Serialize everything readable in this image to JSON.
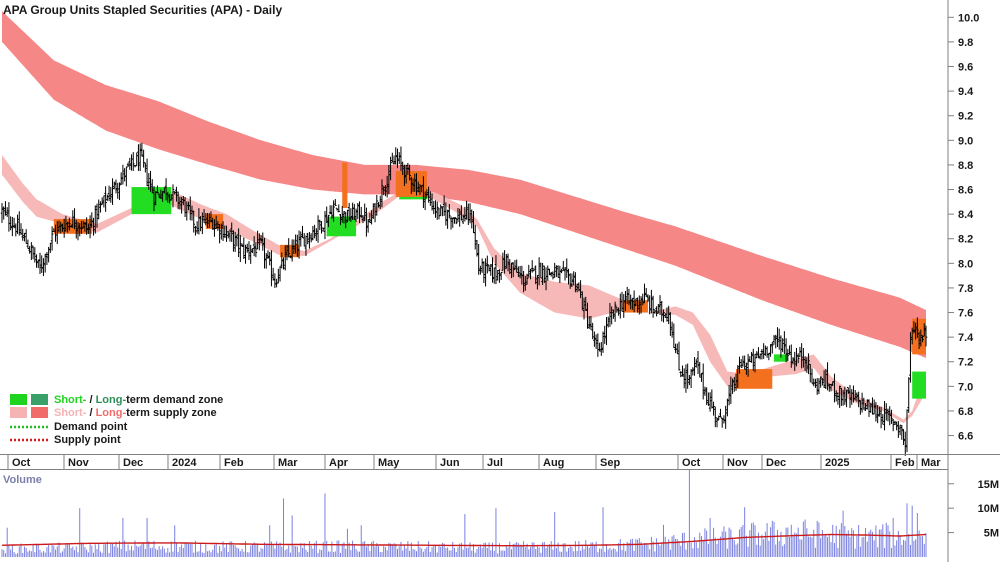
{
  "chart_data": {
    "type": "candlestick",
    "title": "APA Group Units Stapled Securities (APA) - Daily",
    "price_axis": {
      "ylim": [
        6.45,
        10.1
      ],
      "ticks": [
        "10.0",
        "9.8",
        "9.6",
        "9.4",
        "9.2",
        "9.0",
        "8.8",
        "8.6",
        "8.4",
        "8.2",
        "8.0",
        "7.8",
        "7.6",
        "7.4",
        "7.2",
        "7.0",
        "6.8",
        "6.6"
      ]
    },
    "x_axis": {
      "labels": [
        "Oct",
        "Nov",
        "Dec",
        "2024",
        "Feb",
        "Mar",
        "Apr",
        "May",
        "Jun",
        "Jul",
        "Aug",
        "Sep",
        "Oct",
        "Nov",
        "Dec",
        "2025",
        "Feb",
        "Mar"
      ]
    },
    "volume_axis": {
      "label": "Volume",
      "ticks": [
        "15M",
        "10M",
        "5M"
      ],
      "ylim": [
        0,
        17
      ]
    },
    "legend": [
      {
        "prefix": "Short-",
        "sep": " / ",
        "middle": "Long-",
        "rest": "term demand zone",
        "colors": [
          "#1ed41e",
          "#3aa06a"
        ],
        "kind": "demand-zone",
        "prefix_color": "#1ed41e",
        "middle_color": "#2f8f5a"
      },
      {
        "prefix": "Short-",
        "sep": " / ",
        "middle": "Long-",
        "rest": "term supply zone",
        "colors": [
          "#f5b3b3",
          "#f26b6b"
        ],
        "kind": "supply-zone",
        "prefix_color": "#f5b3b3",
        "middle_color": "#f26b6b"
      },
      {
        "text": "Demand point",
        "color": "#22c022",
        "kind": "dotted"
      },
      {
        "text": "Supply point",
        "color": "#d41f1f",
        "kind": "dotted"
      }
    ],
    "series_anchors": {
      "long_supply_upper": [
        [
          0,
          10.05
        ],
        [
          30,
          9.65
        ],
        [
          60,
          9.45
        ],
        [
          90,
          9.32
        ],
        [
          120,
          9.15
        ],
        [
          150,
          9.0
        ],
        [
          180,
          8.88
        ],
        [
          210,
          8.8
        ],
        [
          240,
          8.8
        ],
        [
          270,
          8.76
        ],
        [
          300,
          8.68
        ],
        [
          330,
          8.55
        ],
        [
          360,
          8.42
        ],
        [
          390,
          8.3
        ],
        [
          415,
          8.18
        ],
        [
          440,
          8.06
        ],
        [
          460,
          7.97
        ],
        [
          480,
          7.88
        ],
        [
          500,
          7.8
        ],
        [
          520,
          7.72
        ],
        [
          535,
          7.62
        ]
      ],
      "long_supply_lower": [
        [
          0,
          9.8
        ],
        [
          30,
          9.33
        ],
        [
          60,
          9.08
        ],
        [
          90,
          8.93
        ],
        [
          120,
          8.8
        ],
        [
          150,
          8.68
        ],
        [
          180,
          8.6
        ],
        [
          210,
          8.56
        ],
        [
          240,
          8.56
        ],
        [
          270,
          8.5
        ],
        [
          300,
          8.4
        ],
        [
          330,
          8.26
        ],
        [
          360,
          8.12
        ],
        [
          390,
          7.98
        ],
        [
          415,
          7.84
        ],
        [
          440,
          7.7
        ],
        [
          460,
          7.6
        ],
        [
          480,
          7.5
        ],
        [
          500,
          7.41
        ],
        [
          520,
          7.32
        ],
        [
          535,
          7.23
        ]
      ],
      "short_band_upper": [
        [
          0,
          8.88
        ],
        [
          12,
          8.65
        ],
        [
          20,
          8.52
        ],
        [
          35,
          8.4
        ],
        [
          55,
          8.32
        ],
        [
          75,
          8.45
        ],
        [
          85,
          8.6
        ],
        [
          100,
          8.58
        ],
        [
          115,
          8.48
        ],
        [
          130,
          8.4
        ],
        [
          145,
          8.27
        ],
        [
          160,
          8.15
        ],
        [
          175,
          8.1
        ],
        [
          190,
          8.2
        ],
        [
          205,
          8.34
        ],
        [
          220,
          8.5
        ],
        [
          235,
          8.62
        ],
        [
          250,
          8.58
        ],
        [
          265,
          8.48
        ],
        [
          275,
          8.36
        ],
        [
          285,
          8.12
        ],
        [
          300,
          7.92
        ],
        [
          320,
          7.85
        ],
        [
          340,
          7.82
        ],
        [
          360,
          7.7
        ],
        [
          375,
          7.6
        ],
        [
          390,
          7.65
        ],
        [
          400,
          7.6
        ],
        [
          410,
          7.42
        ],
        [
          420,
          7.12
        ],
        [
          432,
          7.1
        ],
        [
          445,
          7.16
        ],
        [
          460,
          7.22
        ],
        [
          470,
          7.26
        ],
        [
          480,
          7.08
        ],
        [
          495,
          6.92
        ],
        [
          510,
          6.83
        ],
        [
          522,
          6.73
        ],
        [
          527,
          6.8
        ],
        [
          535,
          7.12
        ]
      ],
      "short_band_lower": [
        [
          0,
          8.72
        ],
        [
          12,
          8.5
        ],
        [
          20,
          8.38
        ],
        [
          35,
          8.32
        ],
        [
          55,
          8.25
        ],
        [
          75,
          8.4
        ],
        [
          85,
          8.56
        ],
        [
          100,
          8.46
        ],
        [
          115,
          8.36
        ],
        [
          130,
          8.27
        ],
        [
          145,
          8.18
        ],
        [
          160,
          8.07
        ],
        [
          175,
          8.06
        ],
        [
          190,
          8.18
        ],
        [
          205,
          8.3
        ],
        [
          220,
          8.44
        ],
        [
          235,
          8.6
        ],
        [
          250,
          8.52
        ],
        [
          265,
          8.4
        ],
        [
          275,
          8.3
        ],
        [
          285,
          8.0
        ],
        [
          300,
          7.76
        ],
        [
          320,
          7.6
        ],
        [
          340,
          7.55
        ],
        [
          360,
          7.62
        ],
        [
          375,
          7.6
        ],
        [
          390,
          7.58
        ],
        [
          400,
          7.5
        ],
        [
          410,
          7.2
        ],
        [
          420,
          7.0
        ],
        [
          432,
          7.0
        ],
        [
          445,
          7.08
        ],
        [
          460,
          7.1
        ],
        [
          470,
          7.15
        ],
        [
          480,
          6.97
        ],
        [
          495,
          6.86
        ],
        [
          510,
          6.8
        ],
        [
          522,
          6.7
        ],
        [
          527,
          6.76
        ],
        [
          535,
          6.95
        ]
      ],
      "close": [
        [
          0,
          8.42
        ],
        [
          8,
          8.3
        ],
        [
          15,
          8.15
        ],
        [
          22,
          7.95
        ],
        [
          30,
          8.25
        ],
        [
          40,
          8.35
        ],
        [
          50,
          8.28
        ],
        [
          58,
          8.48
        ],
        [
          65,
          8.62
        ],
        [
          72,
          8.75
        ],
        [
          80,
          8.86
        ],
        [
          88,
          8.55
        ],
        [
          95,
          8.6
        ],
        [
          105,
          8.48
        ],
        [
          112,
          8.32
        ],
        [
          122,
          8.34
        ],
        [
          132,
          8.22
        ],
        [
          140,
          8.1
        ],
        [
          150,
          8.14
        ],
        [
          158,
          7.86
        ],
        [
          165,
          8.06
        ],
        [
          175,
          8.2
        ],
        [
          185,
          8.32
        ],
        [
          192,
          8.45
        ],
        [
          200,
          8.38
        ],
        [
          208,
          8.42
        ],
        [
          212,
          8.3
        ],
        [
          220,
          8.6
        ],
        [
          228,
          8.86
        ],
        [
          235,
          8.72
        ],
        [
          245,
          8.56
        ],
        [
          252,
          8.42
        ],
        [
          262,
          8.38
        ],
        [
          272,
          8.38
        ],
        [
          276,
          7.96
        ],
        [
          286,
          7.92
        ],
        [
          292,
          8.02
        ],
        [
          302,
          7.86
        ],
        [
          310,
          7.94
        ],
        [
          320,
          7.92
        ],
        [
          332,
          7.86
        ],
        [
          340,
          7.5
        ],
        [
          345,
          7.26
        ],
        [
          352,
          7.55
        ],
        [
          360,
          7.7
        ],
        [
          366,
          7.68
        ],
        [
          372,
          7.72
        ],
        [
          378,
          7.62
        ],
        [
          386,
          7.6
        ],
        [
          392,
          7.14
        ],
        [
          398,
          7.05
        ],
        [
          402,
          7.18
        ],
        [
          408,
          6.92
        ],
        [
          416,
          6.7
        ],
        [
          422,
          6.95
        ],
        [
          428,
          7.18
        ],
        [
          435,
          7.2
        ],
        [
          442,
          7.3
        ],
        [
          450,
          7.38
        ],
        [
          458,
          7.22
        ],
        [
          465,
          7.25
        ],
        [
          470,
          7.0
        ],
        [
          476,
          7.05
        ],
        [
          485,
          6.94
        ],
        [
          495,
          6.88
        ],
        [
          505,
          6.8
        ],
        [
          512,
          6.75
        ],
        [
          520,
          6.68
        ],
        [
          523,
          6.52
        ],
        [
          526,
          7.35
        ],
        [
          528,
          7.5
        ],
        [
          531,
          7.4
        ],
        [
          535,
          7.45
        ]
      ],
      "volume": [
        [
          0,
          1.8
        ],
        [
          40,
          2.0
        ],
        [
          80,
          2.4
        ],
        [
          120,
          2.2
        ],
        [
          160,
          2.2
        ],
        [
          200,
          2.3
        ],
        [
          240,
          2.2
        ],
        [
          280,
          2.0
        ],
        [
          320,
          2.3
        ],
        [
          350,
          2.4
        ],
        [
          380,
          3.0
        ],
        [
          400,
          3.8
        ],
        [
          420,
          4.3
        ],
        [
          440,
          5.0
        ],
        [
          460,
          5.4
        ],
        [
          480,
          4.9
        ],
        [
          500,
          4.6
        ],
        [
          520,
          4.4
        ],
        [
          535,
          4.8
        ]
      ],
      "volume_ma": [
        [
          0,
          2.4
        ],
        [
          50,
          2.8
        ],
        [
          100,
          2.9
        ],
        [
          150,
          2.6
        ],
        [
          200,
          2.5
        ],
        [
          250,
          2.4
        ],
        [
          300,
          2.3
        ],
        [
          340,
          2.4
        ],
        [
          370,
          2.6
        ],
        [
          400,
          3.2
        ],
        [
          430,
          4.0
        ],
        [
          460,
          4.4
        ],
        [
          480,
          4.6
        ],
        [
          500,
          4.5
        ],
        [
          520,
          4.3
        ],
        [
          535,
          4.6
        ]
      ],
      "volume_spikes": [
        [
          3,
          6
        ],
        [
          45,
          10
        ],
        [
          70,
          8
        ],
        [
          84,
          8
        ],
        [
          100,
          6.5
        ],
        [
          155,
          6.5
        ],
        [
          163,
          12
        ],
        [
          168,
          8.5
        ],
        [
          187,
          13
        ],
        [
          200,
          5.8
        ],
        [
          208,
          6.5
        ],
        [
          268,
          8.8
        ],
        [
          286,
          10
        ],
        [
          320,
          9.2
        ],
        [
          348,
          10.2
        ],
        [
          383,
          6.6
        ],
        [
          398,
          18
        ],
        [
          410,
          8
        ],
        [
          430,
          10.2
        ],
        [
          457,
          6.6
        ],
        [
          487,
          9.5
        ],
        [
          512,
          7
        ],
        [
          516,
          8
        ],
        [
          524,
          11
        ],
        [
          527,
          10.5
        ],
        [
          530,
          9
        ]
      ]
    },
    "zones_orange": [
      {
        "i0": 30,
        "i1": 52,
        "y0": 8.24,
        "y1": 8.36
      },
      {
        "i0": 118,
        "i1": 128,
        "y0": 8.28,
        "y1": 8.4
      },
      {
        "i0": 161,
        "i1": 172,
        "y0": 8.05,
        "y1": 8.15
      },
      {
        "i0": 197,
        "i1": 200,
        "y0": 8.45,
        "y1": 8.82
      },
      {
        "i0": 228,
        "i1": 246,
        "y0": 8.54,
        "y1": 8.75
      },
      {
        "i0": 360,
        "i1": 374,
        "y0": 7.6,
        "y1": 7.7
      },
      {
        "i0": 425,
        "i1": 446,
        "y0": 6.98,
        "y1": 7.14
      },
      {
        "i0": 527,
        "i1": 535,
        "y0": 7.26,
        "y1": 7.55
      }
    ],
    "zones_green": [
      {
        "i0": 75,
        "i1": 98,
        "y0": 8.4,
        "y1": 8.62
      },
      {
        "i0": 188,
        "i1": 205,
        "y0": 8.22,
        "y1": 8.38
      },
      {
        "i0": 230,
        "i1": 246,
        "y0": 8.52,
        "y1": 8.62
      },
      {
        "i0": 447,
        "i1": 455,
        "y0": 7.2,
        "y1": 7.26
      },
      {
        "i0": 527,
        "i1": 535,
        "y0": 6.9,
        "y1": 7.12
      }
    ]
  }
}
